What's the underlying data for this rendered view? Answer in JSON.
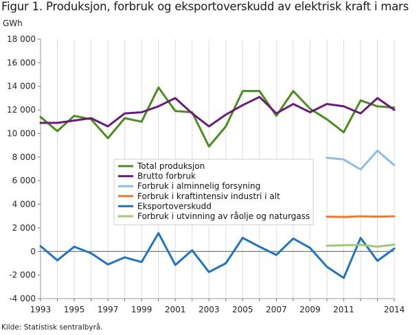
{
  "page": {
    "title": "Figur 1. Produksjon, forbruk og eksportoverskudd av elektrisk kraft i mars",
    "unit": "GWh",
    "source": "Kilde: Statistisk sentralbyrå."
  },
  "chart_data": {
    "type": "line",
    "title": "Figur 1. Produksjon, forbruk og eksportoverskudd av elektrisk kraft i mars",
    "ylabel": "GWh",
    "xlabel": "",
    "ylim": [
      -4000,
      18000
    ],
    "yticks": [
      -4000,
      -2000,
      0,
      2000,
      4000,
      6000,
      8000,
      10000,
      12000,
      14000,
      16000,
      18000
    ],
    "ytick_labels": [
      "-4 000",
      "-2 000",
      "0",
      "2 000",
      "4 000",
      "6 000",
      "8 000",
      "10 000",
      "12 000",
      "14 000",
      "16 000",
      "18 000"
    ],
    "x": [
      1993,
      1994,
      1995,
      1996,
      1997,
      1998,
      1999,
      2000,
      2001,
      2002,
      2003,
      2004,
      2005,
      2006,
      2007,
      2008,
      2009,
      2010,
      2011,
      2012,
      2013,
      2014
    ],
    "xlim": [
      1993,
      2014
    ],
    "xticks": [
      1993,
      1995,
      1997,
      1999,
      2001,
      2003,
      2005,
      2007,
      2009,
      2011,
      2014
    ],
    "xtick_labels": [
      "1993",
      "1995",
      "1997",
      "1999",
      "2001",
      "2003",
      "2005",
      "2007",
      "2009",
      "2011",
      "2014"
    ],
    "grid": "vertical",
    "legend_position": "center",
    "series": [
      {
        "name": "Total produksjon",
        "color": "#4c8c1f",
        "values": [
          11400,
          10200,
          11500,
          11200,
          9600,
          11300,
          11000,
          13900,
          11900,
          11800,
          8900,
          10600,
          13600,
          13600,
          11500,
          13600,
          12100,
          11200,
          10100,
          12800,
          12300,
          12200
        ]
      },
      {
        "name": "Brutto forbruk",
        "color": "#6a1b7a",
        "values": [
          10900,
          10900,
          11100,
          11300,
          10600,
          11700,
          11800,
          12300,
          13000,
          11700,
          10600,
          11600,
          12400,
          13100,
          11700,
          12500,
          11800,
          12500,
          12300,
          11700,
          13000,
          12000
        ]
      },
      {
        "name": "Forbruk i alminnelig forsyning",
        "color": "#8dbde3",
        "values": [
          null,
          null,
          null,
          null,
          null,
          null,
          null,
          null,
          null,
          null,
          null,
          null,
          null,
          null,
          null,
          null,
          null,
          7950,
          7800,
          6950,
          8550,
          7300
        ]
      },
      {
        "name": "Forbruk i kraftintensiv industri i alt",
        "color": "#ec7a2c",
        "values": [
          null,
          null,
          null,
          null,
          null,
          null,
          null,
          null,
          null,
          null,
          null,
          null,
          null,
          null,
          null,
          null,
          null,
          2950,
          2920,
          2980,
          2950,
          2980
        ]
      },
      {
        "name": "Eksportoverskudd",
        "color": "#1f73c0",
        "values": [
          450,
          -750,
          400,
          -150,
          -1100,
          -500,
          -900,
          1550,
          -1150,
          100,
          -1750,
          -1000,
          1150,
          400,
          -300,
          1100,
          300,
          -1300,
          -2250,
          1150,
          -800,
          250
        ]
      },
      {
        "name": "Forbruk i utvinning av råolje og naturgass",
        "color": "#9ccb78",
        "values": [
          null,
          null,
          null,
          null,
          null,
          null,
          null,
          null,
          null,
          null,
          null,
          null,
          null,
          null,
          null,
          null,
          null,
          480,
          520,
          550,
          400,
          580
        ]
      }
    ]
  }
}
